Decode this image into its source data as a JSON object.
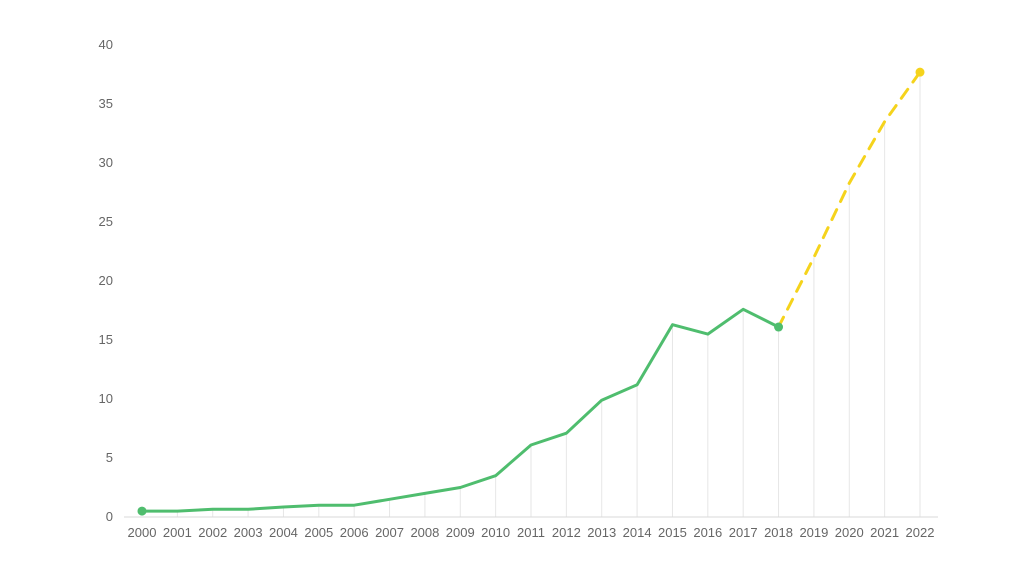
{
  "chart_data": {
    "type": "line",
    "title": "",
    "xlabel": "",
    "ylabel": "",
    "x": [
      "2000",
      "2001",
      "2002",
      "2003",
      "2004",
      "2005",
      "2006",
      "2007",
      "2008",
      "2009",
      "2010",
      "2011",
      "2012",
      "2013",
      "2014",
      "2015",
      "2016",
      "2017",
      "2018",
      "2019",
      "2020",
      "2021",
      "2022"
    ],
    "ylim": [
      0,
      40
    ],
    "yticks": [
      0,
      5,
      10,
      15,
      20,
      25,
      30,
      35,
      40
    ],
    "grid": "vertical lines at data points",
    "legend": "none",
    "series": [
      {
        "style": "solid",
        "color": "#4fbd6e",
        "x": [
          "2000",
          "2001",
          "2002",
          "2003",
          "2004",
          "2005",
          "2006",
          "2007",
          "2008",
          "2009",
          "2010",
          "2011",
          "2012",
          "2013",
          "2014",
          "2015",
          "2016",
          "2017",
          "2018"
        ],
        "values": [
          0.5,
          0.5,
          0.65,
          0.65,
          0.85,
          1.0,
          1.0,
          1.5,
          2.0,
          2.5,
          3.5,
          6.1,
          7.1,
          9.9,
          11.2,
          16.3,
          15.5,
          17.6,
          16.1
        ],
        "marked_points": [
          "2000",
          "2018"
        ]
      },
      {
        "style": "dashed",
        "color": "#f5d31c",
        "x": [
          "2018",
          "2019",
          "2020",
          "2021",
          "2022"
        ],
        "values": [
          16.1,
          22.0,
          28.3,
          33.5,
          37.7
        ],
        "marked_points": [
          "2022"
        ]
      }
    ]
  }
}
